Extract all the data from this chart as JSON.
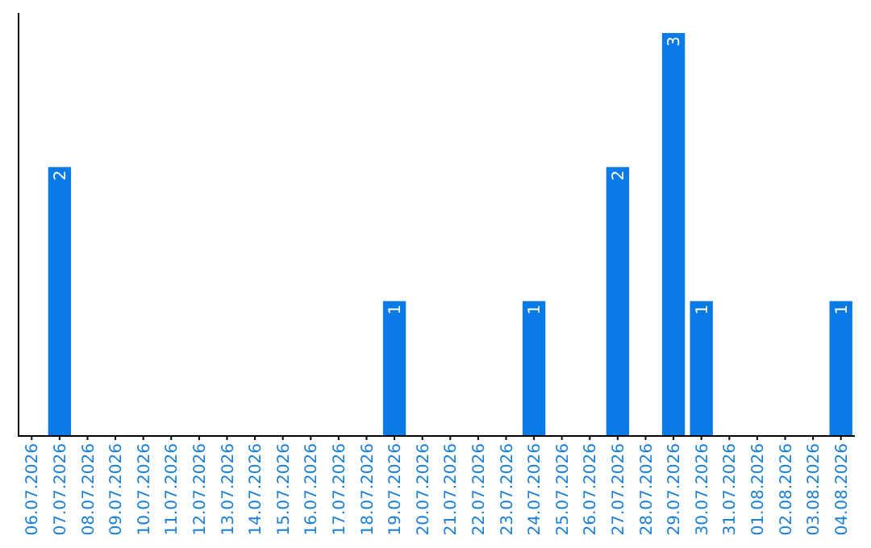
{
  "chart_data": {
    "type": "bar",
    "categories": [
      "06.07.2026",
      "07.07.2026",
      "08.07.2026",
      "09.07.2026",
      "10.07.2026",
      "11.07.2026",
      "12.07.2026",
      "13.07.2026",
      "14.07.2026",
      "15.07.2026",
      "16.07.2026",
      "17.07.2026",
      "18.07.2026",
      "19.07.2026",
      "20.07.2026",
      "21.07.2026",
      "22.07.2026",
      "23.07.2026",
      "24.07.2026",
      "25.07.2026",
      "26.07.2026",
      "27.07.2026",
      "28.07.2026",
      "29.07.2026",
      "30.07.2026",
      "31.07.2026",
      "01.08.2026",
      "02.08.2026",
      "03.08.2026",
      "04.08.2026"
    ],
    "values": [
      0,
      2,
      0,
      0,
      0,
      0,
      0,
      0,
      0,
      0,
      0,
      0,
      0,
      1,
      0,
      0,
      0,
      0,
      1,
      0,
      0,
      2,
      0,
      3,
      1,
      0,
      0,
      0,
      0,
      1
    ],
    "value_labels": [
      null,
      "2",
      null,
      null,
      null,
      null,
      null,
      null,
      null,
      null,
      null,
      null,
      null,
      "1",
      null,
      null,
      null,
      null,
      "1",
      null,
      null,
      "2",
      null,
      "3",
      "1",
      null,
      null,
      null,
      null,
      "1"
    ],
    "color": "#0a7ae6",
    "tick_labels": "x"
  }
}
